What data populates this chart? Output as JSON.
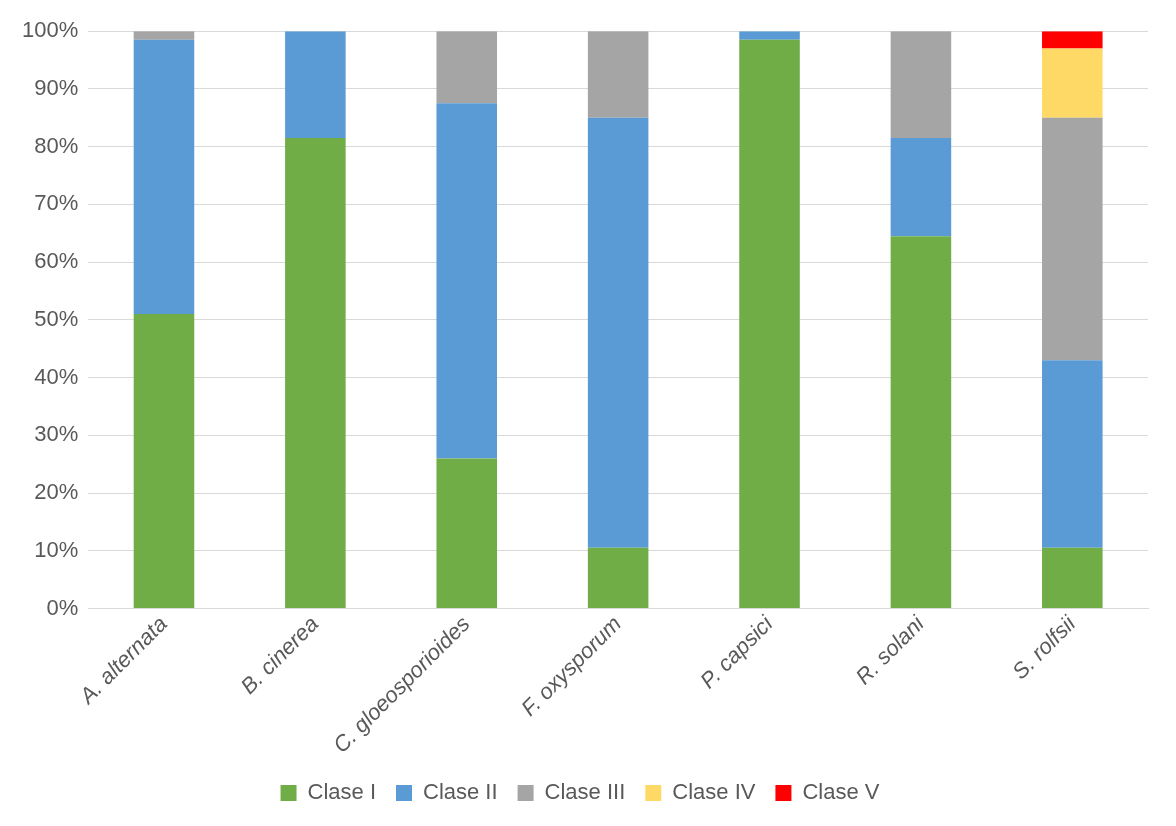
{
  "chart_data": {
    "type": "bar",
    "stacked": true,
    "categories": [
      "A. alternata",
      "B. cinerea",
      "C. gloeosporioides",
      "F. oxysporum",
      "P. capsici",
      "R. solani",
      "S. rolfsii"
    ],
    "series": [
      {
        "name": "Clase I",
        "color": "#70ad47",
        "values": [
          51,
          81.5,
          26,
          10.5,
          98.5,
          64.5,
          10.5
        ]
      },
      {
        "name": "Clase II",
        "color": "#5b9bd5",
        "values": [
          47.5,
          18.5,
          61.5,
          74.5,
          1.5,
          17,
          32.5
        ]
      },
      {
        "name": "Clase III",
        "color": "#a5a5a5",
        "values": [
          1.5,
          0,
          12.5,
          15,
          0,
          18.5,
          42
        ]
      },
      {
        "name": "Clase IV",
        "color": "#ffd966",
        "values": [
          0,
          0,
          0,
          0,
          0,
          0,
          12
        ]
      },
      {
        "name": "Clase V",
        "color": "#ff0000",
        "values": [
          0,
          0,
          0,
          0,
          0,
          0,
          3
        ]
      }
    ],
    "ylim": [
      0,
      100
    ],
    "yticks": [
      {
        "value": 0,
        "label": "0%"
      },
      {
        "value": 10,
        "label": "10%"
      },
      {
        "value": 20,
        "label": "20%"
      },
      {
        "value": 30,
        "label": "30%"
      },
      {
        "value": 40,
        "label": "40%"
      },
      {
        "value": 50,
        "label": "50%"
      },
      {
        "value": 60,
        "label": "60%"
      },
      {
        "value": 70,
        "label": "70%"
      },
      {
        "value": 80,
        "label": "80%"
      },
      {
        "value": 90,
        "label": "90%"
      },
      {
        "value": 100,
        "label": "100%"
      }
    ],
    "grid": "y",
    "legend": "bottom"
  }
}
